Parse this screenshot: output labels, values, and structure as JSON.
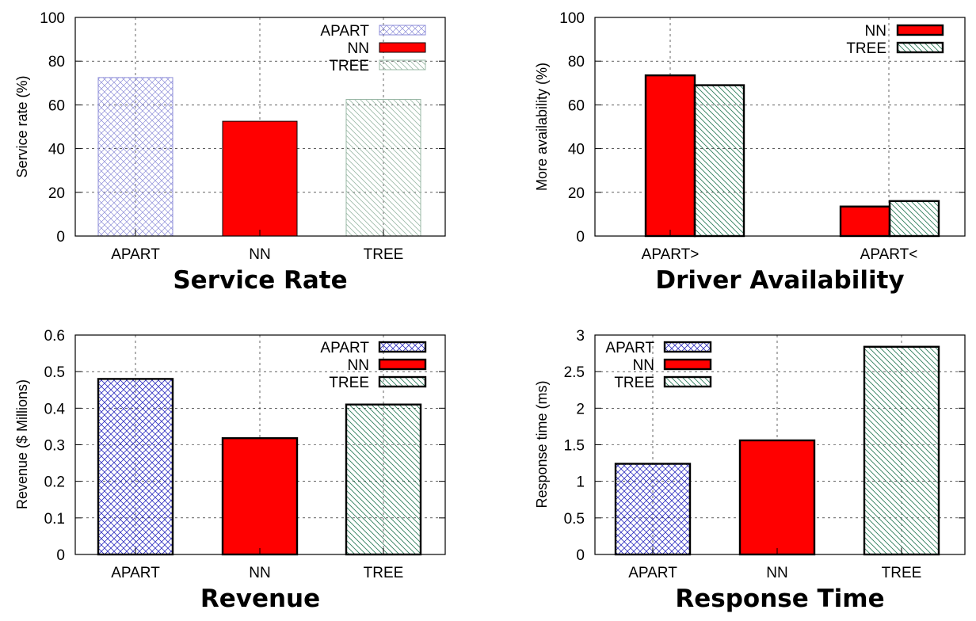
{
  "chart_data": [
    {
      "type": "bar",
      "title": "Service Rate",
      "ylabel": "Service rate (%)",
      "xlabel": "",
      "categories": [
        "APART",
        "NN",
        "TREE"
      ],
      "values": [
        72.5,
        52.5,
        62.5
      ],
      "ylim": [
        0,
        100
      ],
      "yticks": [
        0,
        20,
        40,
        60,
        80,
        100
      ],
      "grid": true,
      "legend_position": "top-right",
      "legend": [
        "APART",
        "NN",
        "TREE"
      ],
      "style": "light"
    },
    {
      "type": "bar",
      "title": "Driver Availability",
      "ylabel": "More availability (%)",
      "xlabel": "",
      "categories": [
        "APART>",
        "APART<"
      ],
      "series": [
        {
          "name": "NN",
          "values": [
            73.5,
            13.5
          ]
        },
        {
          "name": "TREE",
          "values": [
            69,
            16
          ]
        }
      ],
      "ylim": [
        0,
        100
      ],
      "yticks": [
        0,
        20,
        40,
        60,
        80,
        100
      ],
      "grid": true,
      "legend_position": "top-right",
      "legend": [
        "NN",
        "TREE"
      ],
      "style": "bold"
    },
    {
      "type": "bar",
      "title": "Revenue",
      "ylabel": "Revenue ($ Millions)",
      "xlabel": "",
      "categories": [
        "APART",
        "NN",
        "TREE"
      ],
      "values": [
        0.48,
        0.318,
        0.41
      ],
      "ylim": [
        0,
        0.6
      ],
      "yticks": [
        "0",
        "0.1",
        "0.2",
        "0.3",
        "0.4",
        "0.5",
        "0.6"
      ],
      "grid": true,
      "legend_position": "top-right",
      "legend": [
        "APART",
        "NN",
        "TREE"
      ],
      "style": "bold"
    },
    {
      "type": "bar",
      "title": "Response Time",
      "ylabel": "Response time (ms)",
      "xlabel": "",
      "categories": [
        "APART",
        "NN",
        "TREE"
      ],
      "values": [
        1.24,
        1.56,
        2.84
      ],
      "ylim": [
        0,
        3
      ],
      "yticks": [
        "0",
        "0.5",
        "1",
        "1.5",
        "2",
        "2.5",
        "3"
      ],
      "grid": true,
      "legend_position": "top-left",
      "legend": [
        "APART",
        "NN",
        "TREE"
      ],
      "style": "bold"
    }
  ],
  "colors": {
    "apart": "#3030c0",
    "nn": "#ff0000",
    "tree": "#2e7d5b",
    "apart_light": "#8c8cd8",
    "tree_light": "#9ab8a6"
  }
}
